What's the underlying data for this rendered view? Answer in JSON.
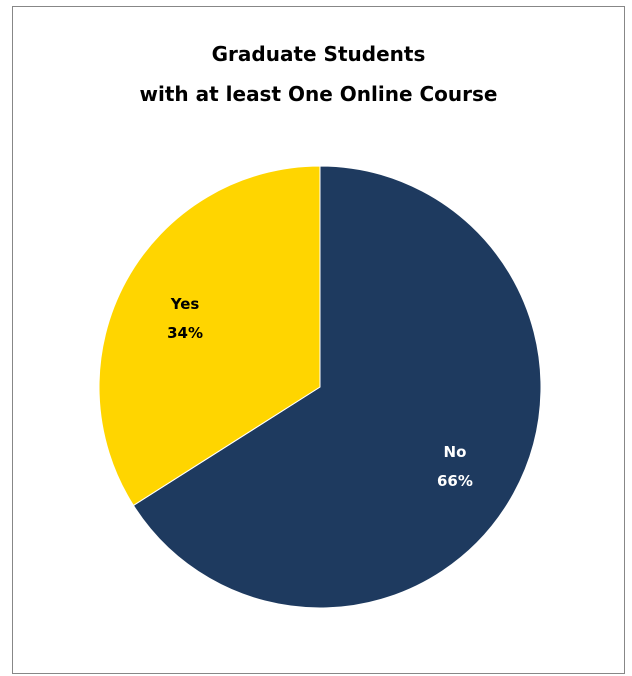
{
  "chart_data": {
    "type": "pie",
    "title_lines": [
      "Graduate Students",
      "with at least One Online Course"
    ],
    "slices": [
      {
        "name": "No",
        "value": 66,
        "percent_label": "66%",
        "color": "#1e3a5f",
        "label_color": "#ffffff"
      },
      {
        "name": "Yes",
        "value": 34,
        "percent_label": "34%",
        "color": "#ffd500",
        "label_color": "#000000"
      }
    ],
    "start": "12 o'clock",
    "direction": "clockwise",
    "legend": "none"
  },
  "colors": {
    "chart_border": "#878787",
    "slice_border": "#ffffff"
  }
}
